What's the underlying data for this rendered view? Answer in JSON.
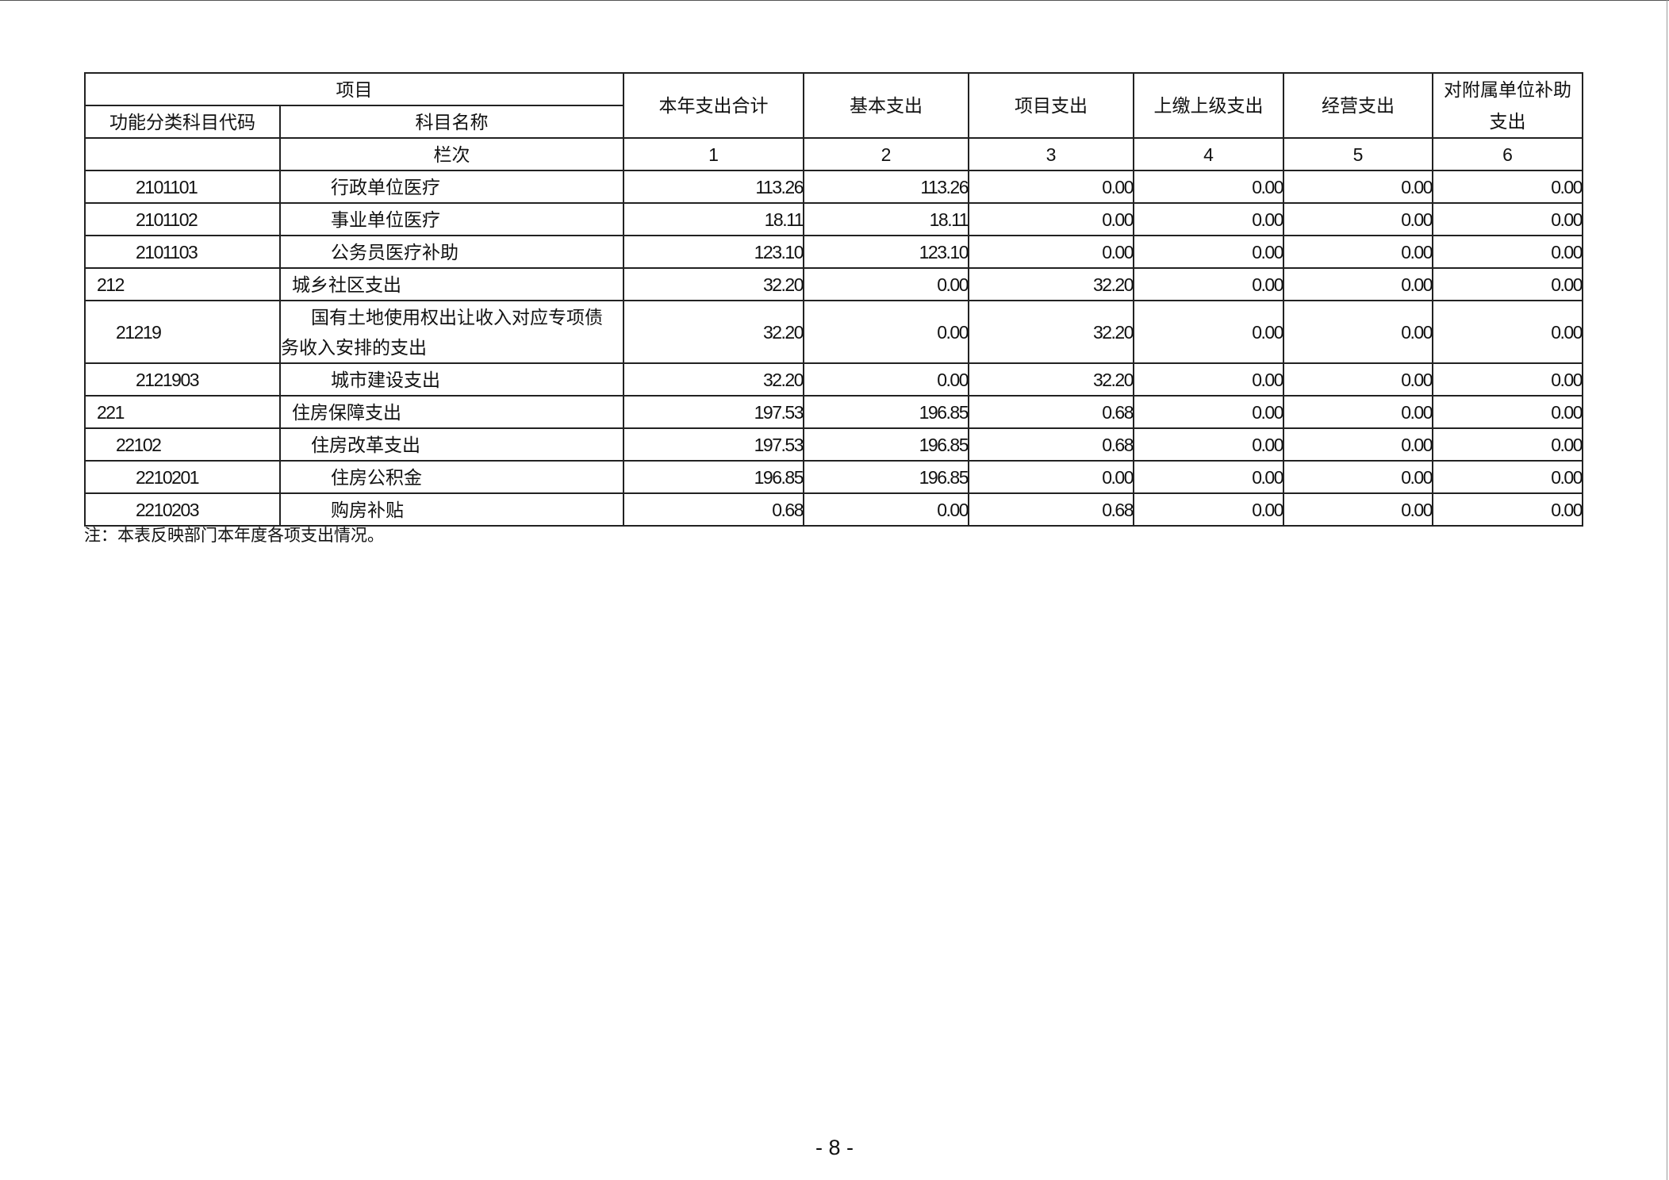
{
  "header": {
    "item": "项目",
    "code": "功能分类科目代码",
    "name": "科目名称",
    "col_index": "栏次",
    "columns": [
      "本年支出合计",
      "基本支出",
      "项目支出",
      "上缴上级支出",
      "经营支出",
      "对附属单位补助支出"
    ],
    "numbers": [
      "1",
      "2",
      "3",
      "4",
      "5",
      "6"
    ]
  },
  "rows": [
    {
      "code": "2101101",
      "name": "行政单位医疗",
      "level": 2,
      "values": [
        "113.26",
        "113.26",
        "0.00",
        "0.00",
        "0.00",
        "0.00"
      ]
    },
    {
      "code": "2101102",
      "name": "事业单位医疗",
      "level": 2,
      "values": [
        "18.11",
        "18.11",
        "0.00",
        "0.00",
        "0.00",
        "0.00"
      ]
    },
    {
      "code": "2101103",
      "name": "公务员医疗补助",
      "level": 2,
      "values": [
        "123.10",
        "123.10",
        "0.00",
        "0.00",
        "0.00",
        "0.00"
      ]
    },
    {
      "code": "212",
      "name": "城乡社区支出",
      "level": 0,
      "values": [
        "32.20",
        "0.00",
        "32.20",
        "0.00",
        "0.00",
        "0.00"
      ]
    },
    {
      "code": "21219",
      "name": "国有土地使用权出让收入对应专项债务收入安排的支出",
      "level": 1,
      "values": [
        "32.20",
        "0.00",
        "32.20",
        "0.00",
        "0.00",
        "0.00"
      ]
    },
    {
      "code": "2121903",
      "name": "城市建设支出",
      "level": 2,
      "values": [
        "32.20",
        "0.00",
        "32.20",
        "0.00",
        "0.00",
        "0.00"
      ]
    },
    {
      "code": "221",
      "name": "住房保障支出",
      "level": 0,
      "values": [
        "197.53",
        "196.85",
        "0.68",
        "0.00",
        "0.00",
        "0.00"
      ]
    },
    {
      "code": "22102",
      "name": "住房改革支出",
      "level": 1,
      "values": [
        "197.53",
        "196.85",
        "0.68",
        "0.00",
        "0.00",
        "0.00"
      ]
    },
    {
      "code": "2210201",
      "name": "住房公积金",
      "level": 2,
      "values": [
        "196.85",
        "196.85",
        "0.00",
        "0.00",
        "0.00",
        "0.00"
      ]
    },
    {
      "code": "2210203",
      "name": "购房补贴",
      "level": 2,
      "values": [
        "0.68",
        "0.00",
        "0.68",
        "0.00",
        "0.00",
        "0.00"
      ]
    }
  ],
  "note": "注：本表反映部门本年度各项支出情况。",
  "page_number": "- 8 -"
}
